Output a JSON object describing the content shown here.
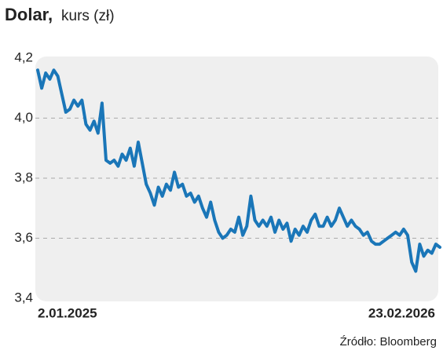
{
  "chart_data": {
    "type": "line",
    "title": "Dolar,",
    "subtitle": "kurs (zł)",
    "source": "Źródło: Bloomberg",
    "categories": [
      "2.01.2025",
      null,
      null,
      null,
      null,
      null,
      null,
      null,
      null,
      null,
      null,
      null,
      null,
      null,
      null,
      null,
      null,
      null,
      null,
      null,
      null,
      null,
      null,
      null,
      null,
      null,
      null,
      null,
      null,
      null,
      null,
      null,
      null,
      null,
      null,
      null,
      null,
      null,
      null,
      null,
      null,
      null,
      null,
      null,
      null,
      null,
      null,
      null,
      null,
      null,
      null,
      null,
      null,
      null,
      null,
      null,
      null,
      null,
      null,
      null,
      null,
      null,
      null,
      null,
      null,
      null,
      null,
      null,
      null,
      null,
      null,
      null,
      null,
      null,
      null,
      null,
      null,
      null,
      null,
      null,
      null,
      null,
      null,
      null,
      null,
      null,
      null,
      null,
      null,
      null,
      null,
      null,
      null,
      null,
      null,
      null,
      null,
      null,
      null,
      null,
      "23.02.2026"
    ],
    "values": [
      4.16,
      4.1,
      4.15,
      4.13,
      4.16,
      4.14,
      4.08,
      4.02,
      4.03,
      4.06,
      4.04,
      4.06,
      3.98,
      3.96,
      3.99,
      3.95,
      4.05,
      3.86,
      3.85,
      3.86,
      3.84,
      3.88,
      3.86,
      3.9,
      3.84,
      3.92,
      3.85,
      3.78,
      3.75,
      3.71,
      3.77,
      3.74,
      3.78,
      3.76,
      3.82,
      3.77,
      3.78,
      3.74,
      3.75,
      3.72,
      3.74,
      3.7,
      3.67,
      3.72,
      3.66,
      3.62,
      3.6,
      3.61,
      3.63,
      3.62,
      3.67,
      3.61,
      3.64,
      3.74,
      3.66,
      3.64,
      3.66,
      3.64,
      3.67,
      3.62,
      3.66,
      3.63,
      3.65,
      3.59,
      3.63,
      3.61,
      3.64,
      3.62,
      3.66,
      3.68,
      3.64,
      3.64,
      3.67,
      3.64,
      3.66,
      3.7,
      3.67,
      3.64,
      3.66,
      3.64,
      3.63,
      3.61,
      3.62,
      3.59,
      3.58,
      3.58,
      3.59,
      3.6,
      3.61,
      3.62,
      3.61,
      3.63,
      3.61,
      3.52,
      3.49,
      3.58,
      3.54,
      3.56,
      3.55,
      3.58,
      3.57
    ],
    "color": "#1a76b8",
    "ylim": [
      3.4,
      4.2
    ],
    "yticks": [
      {
        "value": 3.4,
        "label": "3,4"
      },
      {
        "value": 3.6,
        "label": "3,6"
      },
      {
        "value": 3.8,
        "label": "3,8"
      },
      {
        "value": 4.0,
        "label": "4,0"
      },
      {
        "value": 4.2,
        "label": "4,2"
      }
    ],
    "grid": true
  }
}
